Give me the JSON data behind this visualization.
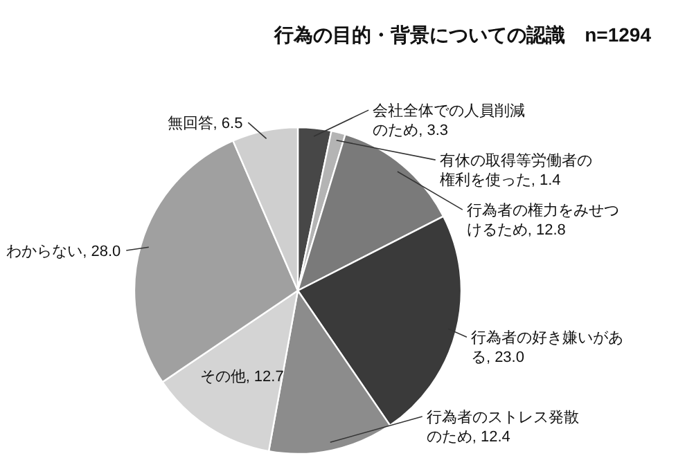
{
  "chart_data": {
    "type": "pie",
    "title": "行為の目的・背景についての認識　n=1294",
    "categories": [
      "会社全体での人員削減のため",
      "有休の取得等労働者の権利を使った",
      "行為者の権力をみせつけるため",
      "行為者の好き嫌いがある",
      "行為者のストレス発散のため",
      "その他",
      "わからない",
      "無回答"
    ],
    "values": [
      3.3,
      1.4,
      12.8,
      23.0,
      12.4,
      12.7,
      28.0,
      6.5
    ],
    "value_labels": [
      "3.3",
      "1.4",
      "12.8",
      "23.0",
      "12.4",
      "12.7",
      "28.0",
      "6.5"
    ],
    "colors": [
      "#474747",
      "#b4b4b4",
      "#7a7a7a",
      "#3a3a3a",
      "#8c8c8c",
      "#d4d4d4",
      "#a0a0a0",
      "#cfcfcf"
    ]
  }
}
